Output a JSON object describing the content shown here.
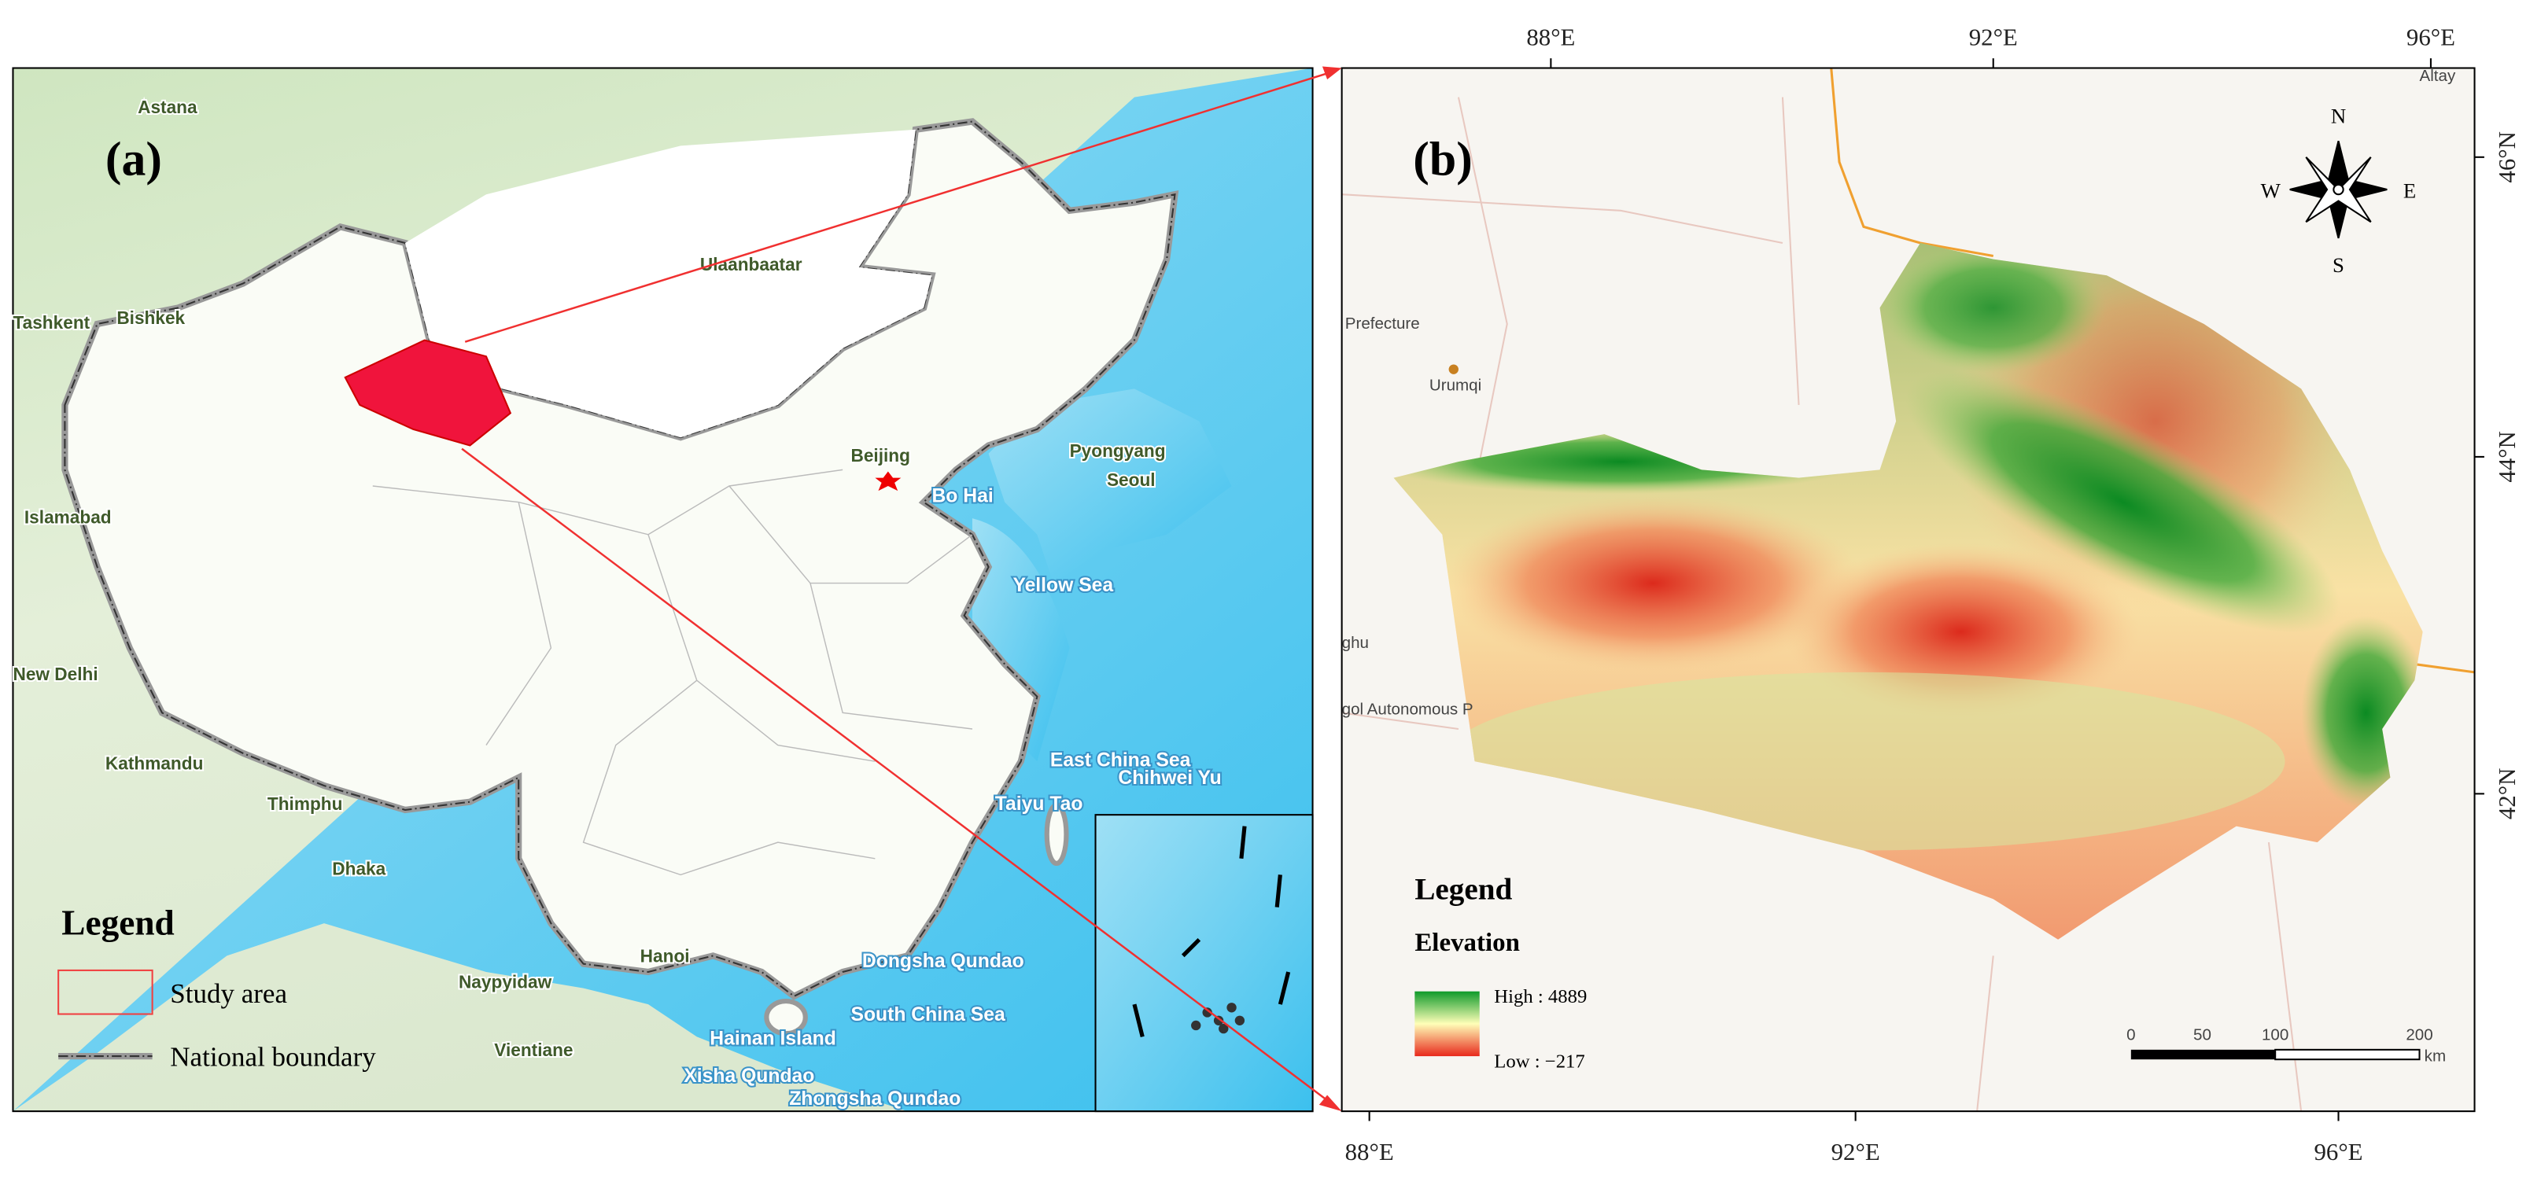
{
  "panel_a": {
    "label": "(a)",
    "places": [
      "Astana",
      "Ulaanbaatar",
      "Bishkek",
      "Tashkent",
      "Islamabad",
      "New Delhi",
      "Kathmandu",
      "Thimphu",
      "Dhaka",
      "Naypyidaw",
      "Vientiane",
      "Hanoi",
      "Beijing",
      "Pyongyang",
      "Seoul",
      "Bo Hai",
      "Chihwei Yu",
      "Taiyu Tao"
    ],
    "seas": [
      "Yellow Sea",
      "East China Sea",
      "Dongsha Qundao",
      "South China Sea",
      "Hainan Island",
      "Xisha Qundao",
      "Zhongsha Qundao"
    ],
    "legend": {
      "title": "Legend",
      "items": [
        "Study area",
        "National boundary"
      ]
    }
  },
  "panel_b": {
    "label": "(b)",
    "places": [
      "Prefecture",
      "Urumqi",
      "Altay",
      "gol Autonomous P",
      "ghu"
    ],
    "compass": [
      "N",
      "S",
      "E",
      "W"
    ],
    "legend": {
      "title": "Legend",
      "subtitle": "Elevation",
      "high": "High : 4889",
      "low": "Low : −217"
    },
    "scale": {
      "ticks": [
        "0",
        "50",
        "100",
        "200"
      ],
      "unit": "km"
    },
    "top_axis": [
      "88°E",
      "92°E",
      "96°E"
    ],
    "bottom_axis": [
      "88°E",
      "92°E",
      "96°E"
    ],
    "right_axis": [
      "46°N",
      "44°N",
      "42°N"
    ]
  }
}
